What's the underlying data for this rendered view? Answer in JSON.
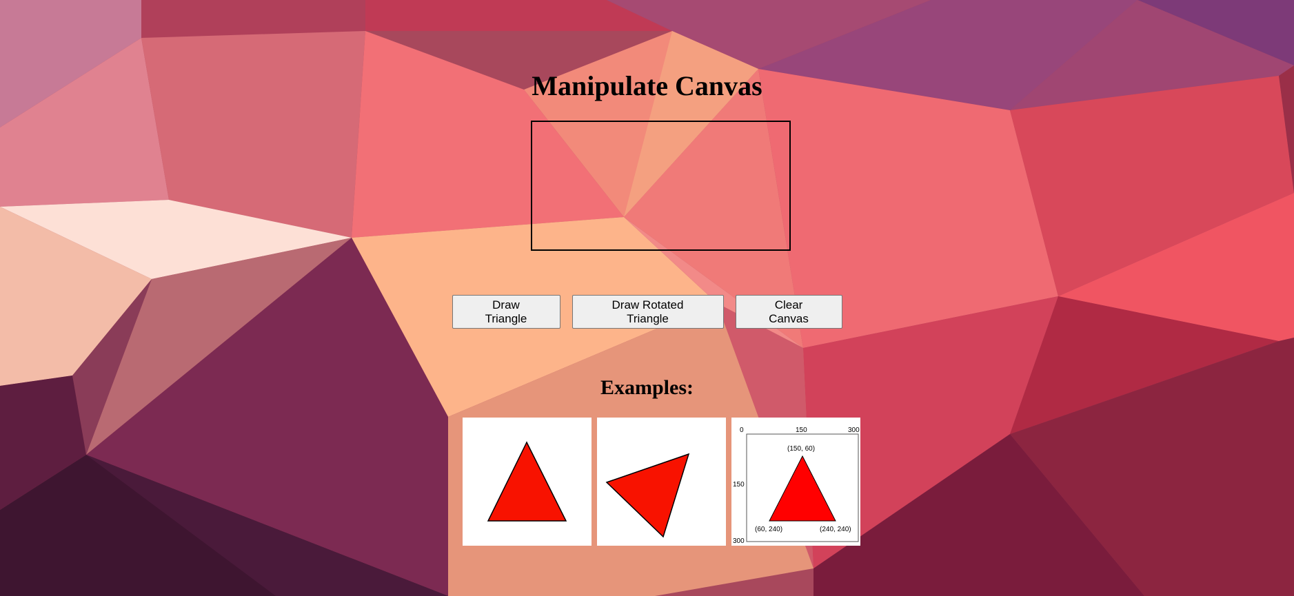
{
  "page": {
    "title": "Manipulate Canvas"
  },
  "controls": {
    "draw_triangle_label": "Draw Triangle",
    "draw_rotated_label": "Draw Rotated Triangle",
    "clear_label": "Clear Canvas"
  },
  "examples": {
    "heading": "Examples:",
    "coordinate_example": {
      "axis_ticks": [
        "0",
        "150",
        "300"
      ],
      "y_ticks": [
        "150",
        "300"
      ],
      "apex_label": "(150, 60)",
      "left_label": "(60, 240)",
      "right_label": "(240, 240)"
    }
  },
  "colors": {
    "triangle_fill": "#f81200",
    "triangle_stroke": "#000000",
    "button_bg": "#efefef"
  }
}
